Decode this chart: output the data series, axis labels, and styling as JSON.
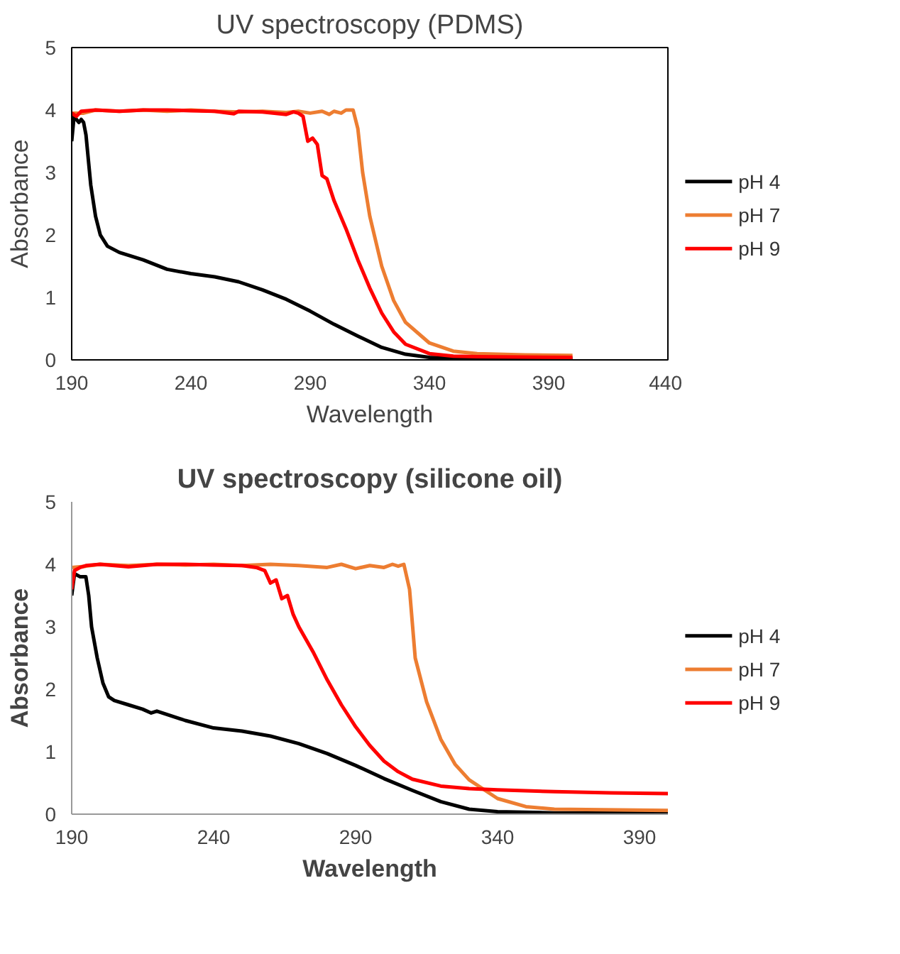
{
  "chart_data": [
    {
      "type": "line",
      "title": "UV spectroscopy (PDMS)",
      "xlabel": "Wavelength",
      "ylabel": "Absorbance",
      "xlim": [
        190,
        440
      ],
      "xticks": [
        190,
        240,
        290,
        340,
        390,
        440
      ],
      "ylim": [
        0,
        5
      ],
      "yticks": [
        0,
        1,
        2,
        3,
        4,
        5
      ],
      "grid": false,
      "legend": "right",
      "marker": "none",
      "line_style": "solid",
      "series": [
        {
          "name": "pH 4",
          "color": "#000000",
          "x": [
            190,
            191,
            192,
            193,
            194,
            195,
            196,
            197,
            198,
            200,
            202,
            205,
            210,
            220,
            230,
            240,
            250,
            260,
            270,
            280,
            290,
            300,
            310,
            320,
            330,
            340,
            360,
            400
          ],
          "values": [
            3.5,
            3.9,
            3.85,
            3.8,
            3.85,
            3.8,
            3.6,
            3.2,
            2.8,
            2.3,
            2.0,
            1.82,
            1.72,
            1.6,
            1.45,
            1.38,
            1.33,
            1.25,
            1.12,
            0.97,
            0.78,
            0.57,
            0.38,
            0.2,
            0.09,
            0.04,
            0.02,
            0.02
          ]
        },
        {
          "name": "pH 7",
          "color": "#ed7d31",
          "x": [
            190,
            195,
            200,
            210,
            220,
            230,
            240,
            250,
            260,
            270,
            280,
            285,
            290,
            295,
            298,
            300,
            303,
            305,
            308,
            310,
            312,
            315,
            320,
            325,
            330,
            340,
            350,
            360,
            380,
            400
          ],
          "values": [
            3.95,
            3.95,
            4.0,
            3.98,
            4.0,
            3.98,
            4.0,
            3.98,
            3.97,
            3.98,
            3.96,
            3.98,
            3.95,
            3.98,
            3.93,
            3.98,
            3.95,
            4.0,
            4.0,
            3.7,
            3.0,
            2.3,
            1.5,
            0.95,
            0.6,
            0.27,
            0.14,
            0.1,
            0.08,
            0.07
          ]
        },
        {
          "name": "pH 9",
          "color": "#ff0000",
          "x": [
            190,
            192,
            194,
            200,
            210,
            220,
            230,
            240,
            250,
            258,
            260,
            270,
            280,
            283,
            285,
            287,
            289,
            291,
            293,
            295,
            297,
            300,
            305,
            310,
            315,
            320,
            325,
            330,
            340,
            350,
            360,
            400
          ],
          "values": [
            3.95,
            3.9,
            3.98,
            4.0,
            3.98,
            4.0,
            4.0,
            3.99,
            3.98,
            3.94,
            3.98,
            3.97,
            3.93,
            3.97,
            3.95,
            3.9,
            3.5,
            3.55,
            3.45,
            2.95,
            2.9,
            2.55,
            2.1,
            1.6,
            1.15,
            0.75,
            0.45,
            0.25,
            0.1,
            0.06,
            0.05,
            0.04
          ]
        }
      ]
    },
    {
      "type": "line",
      "title": "UV spectroscopy (silicone oil)",
      "xlabel": "Wavelength",
      "ylabel": "Absorbance",
      "xlim": [
        190,
        400
      ],
      "xticks": [
        190,
        240,
        290,
        340,
        390
      ],
      "ylim": [
        0,
        5
      ],
      "yticks": [
        0,
        1,
        2,
        3,
        4,
        5
      ],
      "grid": false,
      "legend": "right",
      "marker": "none",
      "line_style": "solid",
      "series": [
        {
          "name": "pH 4",
          "color": "#000000",
          "x": [
            190,
            191,
            193,
            195,
            196,
            197,
            199,
            201,
            203,
            205,
            210,
            215,
            218,
            220,
            230,
            240,
            250,
            260,
            270,
            280,
            290,
            300,
            310,
            320,
            330,
            340,
            360,
            400
          ],
          "values": [
            3.5,
            3.85,
            3.8,
            3.8,
            3.5,
            3.0,
            2.5,
            2.1,
            1.88,
            1.82,
            1.75,
            1.68,
            1.62,
            1.65,
            1.5,
            1.38,
            1.33,
            1.25,
            1.13,
            0.97,
            0.78,
            0.57,
            0.38,
            0.2,
            0.08,
            0.04,
            0.02,
            0.02
          ]
        },
        {
          "name": "pH 7",
          "color": "#ed7d31",
          "x": [
            190,
            195,
            200,
            210,
            220,
            230,
            240,
            250,
            260,
            270,
            280,
            285,
            290,
            295,
            300,
            303,
            305,
            307,
            309,
            311,
            315,
            320,
            325,
            330,
            340,
            350,
            360,
            400
          ],
          "values": [
            3.95,
            3.97,
            4.0,
            3.98,
            4.0,
            3.99,
            4.0,
            3.98,
            4.0,
            3.98,
            3.95,
            4.0,
            3.93,
            3.98,
            3.95,
            4.0,
            3.97,
            4.0,
            3.6,
            2.5,
            1.8,
            1.2,
            0.8,
            0.55,
            0.25,
            0.12,
            0.08,
            0.06
          ]
        },
        {
          "name": "pH 9",
          "color": "#ff0000",
          "x": [
            190,
            191,
            193,
            195,
            200,
            210,
            220,
            230,
            240,
            250,
            255,
            258,
            260,
            262,
            264,
            266,
            268,
            270,
            275,
            280,
            285,
            290,
            295,
            300,
            305,
            310,
            320,
            330,
            340,
            360,
            380,
            400
          ],
          "values": [
            3.6,
            3.9,
            3.95,
            3.98,
            4.0,
            3.96,
            4.0,
            4.0,
            3.99,
            3.98,
            3.95,
            3.9,
            3.7,
            3.75,
            3.45,
            3.5,
            3.2,
            3.0,
            2.6,
            2.15,
            1.75,
            1.4,
            1.1,
            0.85,
            0.68,
            0.56,
            0.45,
            0.41,
            0.39,
            0.36,
            0.34,
            0.33
          ]
        }
      ]
    }
  ]
}
